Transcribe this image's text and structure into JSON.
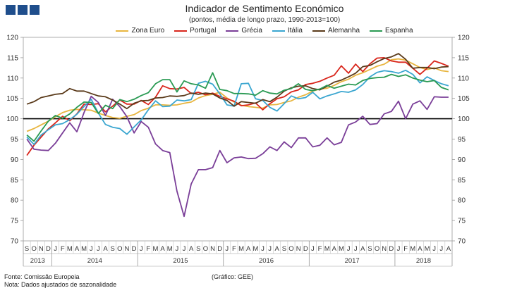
{
  "chart_data": {
    "type": "line",
    "title": "Indicador de Sentimento Económico",
    "subtitle": "(pontos, média de longo prazo, 1990-2013=100)",
    "ylim": [
      70,
      120
    ],
    "yticks": [
      70,
      75,
      80,
      85,
      90,
      95,
      100,
      105,
      110,
      115,
      120
    ],
    "reference_line": 100,
    "months": [
      "S",
      "O",
      "N",
      "D",
      "J",
      "F",
      "M",
      "A",
      "M",
      "J",
      "J",
      "A",
      "S",
      "O",
      "N",
      "D",
      "J",
      "F",
      "M",
      "A",
      "M",
      "J",
      "J",
      "A",
      "S",
      "O",
      "N",
      "D",
      "J",
      "F",
      "M",
      "A",
      "M",
      "J",
      "J",
      "A",
      "S",
      "O",
      "N",
      "D",
      "J",
      "F",
      "M",
      "A",
      "M",
      "J",
      "J",
      "A",
      "S",
      "O",
      "N",
      "D",
      "J",
      "F",
      "M",
      "A",
      "M",
      "J",
      "J",
      "A"
    ],
    "years": [
      {
        "label": "2013",
        "start": 0,
        "end": 3
      },
      {
        "label": "2014",
        "start": 4,
        "end": 15
      },
      {
        "label": "2015",
        "start": 16,
        "end": 27
      },
      {
        "label": "2016",
        "start": 28,
        "end": 39
      },
      {
        "label": "2017",
        "start": 40,
        "end": 51
      },
      {
        "label": "2018",
        "start": 52,
        "end": 59
      }
    ],
    "series": [
      {
        "name": "Zona Euro",
        "color": "#e8b53f",
        "values": [
          96.9,
          97.6,
          98.5,
          99.4,
          100.5,
          101.5,
          102.1,
          102.3,
          102.2,
          102.1,
          101.4,
          100.8,
          100.3,
          100.1,
          100.6,
          101.0,
          102.0,
          102.6,
          103.4,
          103.4,
          103.3,
          103.4,
          103.8,
          104.1,
          105.1,
          105.7,
          106.0,
          106.5,
          105.1,
          104.1,
          103.3,
          103.0,
          102.8,
          102.6,
          103.4,
          103.5,
          104.0,
          104.4,
          105.3,
          105.9,
          106.8,
          107.3,
          107.5,
          108.2,
          109.1,
          109.7,
          110.7,
          111.3,
          112.1,
          112.9,
          113.4,
          114.5,
          114.7,
          114.4,
          113.5,
          112.6,
          112.1,
          112.5,
          111.8,
          111.6
        ]
      },
      {
        "name": "Portugal",
        "color": "#d9261c",
        "values": [
          91.0,
          93.5,
          95.5,
          97.5,
          99.0,
          100.6,
          99.5,
          101.2,
          103.6,
          103.5,
          103.7,
          101.7,
          103.1,
          104.6,
          103.6,
          103.6,
          104.5,
          103.5,
          105.3,
          108.1,
          107.4,
          107.3,
          107.7,
          106.2,
          106.5,
          105.9,
          106.3,
          105.5,
          104.9,
          104.3,
          103.2,
          103.4,
          103.9,
          102.2,
          103.7,
          104.9,
          105.4,
          106.6,
          107.1,
          108.4,
          108.7,
          109.2,
          110.0,
          110.7,
          113.0,
          111.2,
          113.4,
          111.6,
          113.5,
          114.9,
          115.0,
          114.2,
          113.9,
          113.9,
          112.4,
          110.9,
          112.4,
          114.2,
          113.6,
          112.9
        ]
      },
      {
        "name": "Grécia",
        "color": "#7a3e98",
        "values": [
          95.0,
          92.5,
          92.3,
          92.2,
          94.0,
          96.5,
          99.0,
          96.8,
          101.5,
          105.5,
          104.0,
          100.8,
          104.8,
          103.0,
          100.5,
          96.5,
          99.3,
          97.9,
          93.8,
          92.2,
          91.7,
          82.2,
          76.0,
          84.0,
          87.5,
          87.5,
          88.0,
          92.2,
          89.2,
          90.4,
          90.6,
          90.2,
          90.3,
          91.4,
          93.1,
          92.2,
          94.3,
          92.9,
          95.3,
          95.3,
          93.1,
          93.5,
          95.3,
          93.6,
          94.2,
          98.5,
          99.2,
          100.6,
          98.6,
          98.8,
          101.2,
          101.8,
          104.3,
          100.0,
          103.6,
          104.4,
          102.3,
          105.4,
          105.3,
          105.3
        ]
      },
      {
        "name": "Itália",
        "color": "#3aa6d0",
        "values": [
          95.5,
          93.7,
          96.0,
          97.3,
          98.5,
          98.8,
          99.8,
          101.1,
          103.0,
          104.8,
          101.4,
          98.6,
          97.9,
          97.6,
          96.2,
          98.0,
          99.7,
          102.2,
          104.4,
          103.0,
          103.1,
          104.6,
          104.4,
          104.7,
          108.7,
          109.2,
          108.5,
          106.1,
          103.4,
          103.1,
          108.6,
          108.7,
          104.9,
          104.5,
          102.8,
          101.9,
          103.7,
          105.6,
          104.9,
          105.2,
          106.5,
          104.9,
          105.6,
          106.1,
          106.7,
          106.5,
          107.1,
          108.4,
          110.3,
          111.4,
          111.8,
          111.6,
          111.2,
          111.9,
          110.9,
          108.8,
          110.3,
          109.4,
          108.6,
          108.1
        ]
      },
      {
        "name": "Alemanha",
        "color": "#5a3a1a",
        "values": [
          103.6,
          104.2,
          105.2,
          105.6,
          106.0,
          106.2,
          107.4,
          106.8,
          106.8,
          106.2,
          105.6,
          105.4,
          104.6,
          103.6,
          102.5,
          103.8,
          104.4,
          104.5,
          105.1,
          105.2,
          105.6,
          105.5,
          105.7,
          106.3,
          106.0,
          106.3,
          106.1,
          105.1,
          104.5,
          103.1,
          104.2,
          104.0,
          103.8,
          104.7,
          104.2,
          105.3,
          106.8,
          107.6,
          108.0,
          108.1,
          107.4,
          107.1,
          108.0,
          109.0,
          109.5,
          110.3,
          111.2,
          112.8,
          113.1,
          114.0,
          114.8,
          115.2,
          116.0,
          114.6,
          112.4,
          112.6,
          112.6,
          112.3,
          112.7,
          112.8
        ]
      },
      {
        "name": "Espanha",
        "color": "#2a9a53",
        "values": [
          96.0,
          94.5,
          97.0,
          99.4,
          100.8,
          100.1,
          101.2,
          102.8,
          104.1,
          104.0,
          101.3,
          103.3,
          102.5,
          104.7,
          104.2,
          104.8,
          105.7,
          106.4,
          108.6,
          109.6,
          109.6,
          106.6,
          109.3,
          108.6,
          108.3,
          107.5,
          111.3,
          107.2,
          106.9,
          106.2,
          106.2,
          106.1,
          105.8,
          106.9,
          106.3,
          106.1,
          107.0,
          107.4,
          108.6,
          107.2,
          106.9,
          107.3,
          108.2,
          107.5,
          108.0,
          108.5,
          108.3,
          109.4,
          109.9,
          110.1,
          110.2,
          110.9,
          110.4,
          110.8,
          110.0,
          109.5,
          109.1,
          109.4,
          107.7,
          107.1
        ]
      }
    ],
    "x_axis_label": "",
    "y_axis_label": ""
  },
  "footer": {
    "source": "Fonte: Comissão Europeia",
    "note": "Nota: Dados ajustados de sazonalidade",
    "credit": "(Gráfico: GEE)"
  }
}
